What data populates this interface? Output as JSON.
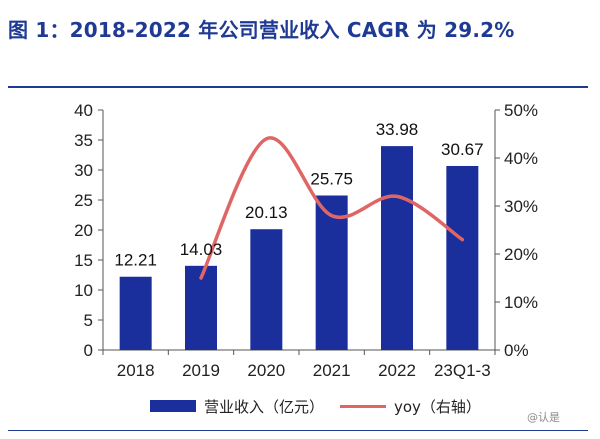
{
  "title": "图 1：2018-2022 年公司营业收入 CAGR 为 29.2%",
  "watermark": "@认是",
  "chart_data": {
    "type": "bar",
    "categories": [
      "2018",
      "2019",
      "2020",
      "2021",
      "2022",
      "23Q1-3"
    ],
    "series": [
      {
        "name": "营业收入（亿元）",
        "type": "bar",
        "axis": "left",
        "values": [
          12.21,
          14.03,
          20.13,
          25.75,
          33.98,
          30.67
        ],
        "color": "#1a2f9c"
      },
      {
        "name": "yoy（右轴）",
        "type": "line",
        "axis": "right",
        "values": [
          null,
          15,
          44,
          28,
          32,
          23
        ],
        "color": "#e06666"
      }
    ],
    "data_labels": [
      "12.21",
      "14.03",
      "20.13",
      "25.75",
      "33.98",
      "30.67"
    ],
    "y_left": {
      "ticks": [
        "0",
        "5",
        "10",
        "15",
        "20",
        "25",
        "30",
        "35",
        "40"
      ],
      "lim": [
        0,
        40
      ]
    },
    "y_right": {
      "ticks": [
        "0%",
        "10%",
        "20%",
        "30%",
        "40%",
        "50%"
      ],
      "lim": [
        0,
        50
      ]
    },
    "grid": false,
    "legend_position": "bottom"
  }
}
